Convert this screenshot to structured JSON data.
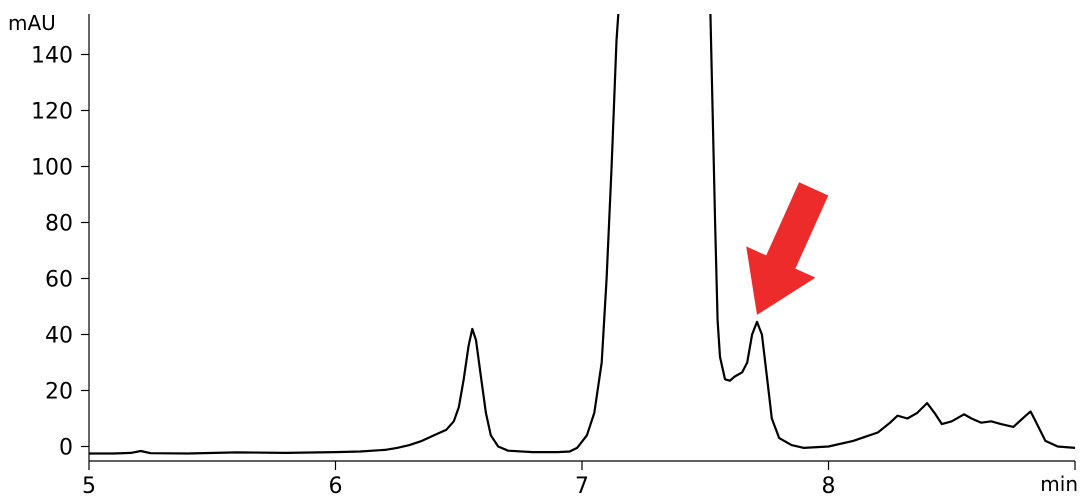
{
  "chart_data": {
    "type": "line",
    "title": "",
    "xlabel": "min",
    "ylabel": "mAU",
    "xlim": [
      5,
      9
    ],
    "ylim": [
      -5,
      155
    ],
    "x_ticks": [
      5,
      6,
      7,
      8
    ],
    "y_ticks": [
      0,
      20,
      40,
      60,
      80,
      100,
      120,
      140
    ],
    "grid": false,
    "legend": "none",
    "series": [
      {
        "color": "#000000",
        "points": [
          [
            5.0,
            -2.5
          ],
          [
            5.1,
            -2.5
          ],
          [
            5.17,
            -2.3
          ],
          [
            5.21,
            -1.6
          ],
          [
            5.25,
            -2.4
          ],
          [
            5.4,
            -2.5
          ],
          [
            5.6,
            -2.1
          ],
          [
            5.8,
            -2.3
          ],
          [
            6.0,
            -2.0
          ],
          [
            6.1,
            -1.8
          ],
          [
            6.2,
            -1.2
          ],
          [
            6.25,
            -0.5
          ],
          [
            6.3,
            0.5
          ],
          [
            6.35,
            2.0
          ],
          [
            6.4,
            4.0
          ],
          [
            6.45,
            6.0
          ],
          [
            6.48,
            9.0
          ],
          [
            6.5,
            14.0
          ],
          [
            6.52,
            24.0
          ],
          [
            6.54,
            36.0
          ],
          [
            6.555,
            42.0
          ],
          [
            6.57,
            38.0
          ],
          [
            6.59,
            25.0
          ],
          [
            6.61,
            12.0
          ],
          [
            6.63,
            4.0
          ],
          [
            6.66,
            0.0
          ],
          [
            6.7,
            -1.5
          ],
          [
            6.8,
            -2.0
          ],
          [
            6.9,
            -2.0
          ],
          [
            6.95,
            -1.8
          ],
          [
            6.98,
            -0.5
          ],
          [
            7.02,
            4.0
          ],
          [
            7.05,
            12.0
          ],
          [
            7.08,
            30.0
          ],
          [
            7.1,
            60.0
          ],
          [
            7.12,
            100.0
          ],
          [
            7.14,
            145.0
          ],
          [
            7.15,
            158.0
          ],
          [
            7.52,
            158.0
          ],
          [
            7.53,
            120.0
          ],
          [
            7.54,
            80.0
          ],
          [
            7.55,
            45.0
          ],
          [
            7.56,
            32.0
          ],
          [
            7.58,
            24.0
          ],
          [
            7.6,
            23.5
          ],
          [
            7.62,
            25.0
          ],
          [
            7.65,
            26.5
          ],
          [
            7.67,
            30.0
          ],
          [
            7.69,
            40.0
          ],
          [
            7.71,
            44.5
          ],
          [
            7.73,
            40.0
          ],
          [
            7.75,
            25.0
          ],
          [
            7.77,
            10.0
          ],
          [
            7.8,
            3.0
          ],
          [
            7.85,
            0.5
          ],
          [
            7.9,
            -0.5
          ],
          [
            8.0,
            0.0
          ],
          [
            8.1,
            2.0
          ],
          [
            8.15,
            3.5
          ],
          [
            8.2,
            5.0
          ],
          [
            8.25,
            8.5
          ],
          [
            8.28,
            11.0
          ],
          [
            8.32,
            10.0
          ],
          [
            8.36,
            12.0
          ],
          [
            8.4,
            15.5
          ],
          [
            8.43,
            12.0
          ],
          [
            8.46,
            8.0
          ],
          [
            8.5,
            9.0
          ],
          [
            8.55,
            11.5
          ],
          [
            8.58,
            10.0
          ],
          [
            8.62,
            8.5
          ],
          [
            8.66,
            9.0
          ],
          [
            8.7,
            8.0
          ],
          [
            8.75,
            7.0
          ],
          [
            8.8,
            11.0
          ],
          [
            8.82,
            12.5
          ],
          [
            8.84,
            9.0
          ],
          [
            8.88,
            2.0
          ],
          [
            8.93,
            0.0
          ],
          [
            9.0,
            -0.5
          ]
        ]
      }
    ],
    "annotations": [
      {
        "type": "arrow",
        "color": "#ee2b2b",
        "target": [
          7.71,
          47.0
        ],
        "tail": [
          7.94,
          92.0
        ]
      }
    ]
  }
}
